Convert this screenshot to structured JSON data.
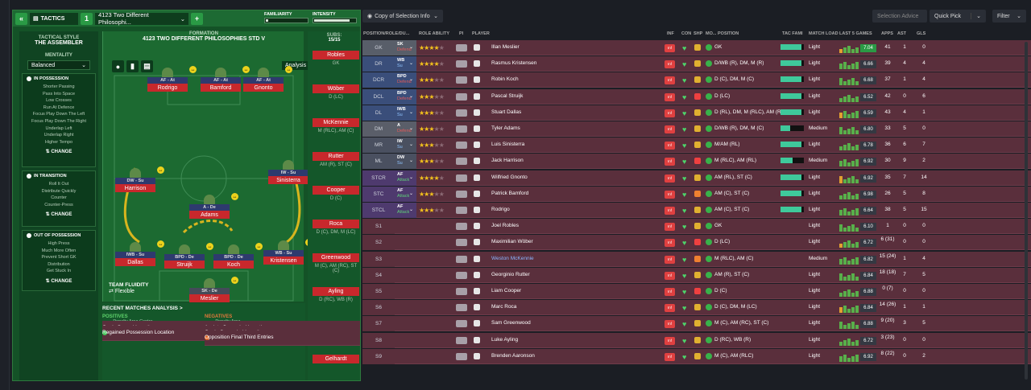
{
  "left_panel": {
    "tactics_label": "TACTICS",
    "slot": "1",
    "tactic_name": "4123 Two Different Philosophi...",
    "familiarity_label": "FAMILIARITY",
    "intensity_label": "INTENSITY",
    "familiarity_level": 0.05,
    "intensity_level": 0.85,
    "tactical_style_label": "TACTICAL STYLE",
    "tactical_style": "THE ASSEMBLER",
    "mentality_label": "MENTALITY",
    "mentality": "Balanced",
    "in_possession": {
      "title": "IN POSSESSION",
      "items": [
        "Shorter Passing",
        "Pass Into Space",
        "Low Crosses",
        "Run At Defence",
        "Focus Play Down The Left",
        "Focus Play Down The Right",
        "Underlap Left",
        "Underlap Right",
        "Higher Tempo"
      ],
      "change": "CHANGE"
    },
    "in_transition": {
      "title": "IN TRANSITION",
      "items": [
        "Roll It Out",
        "Distribute Quickly",
        "Counter",
        "Counter-Press"
      ],
      "change": "CHANGE"
    },
    "out_of_possession": {
      "title": "OUT OF POSSESSION",
      "items": [
        "High Press",
        "Much More Often",
        "Prevent Short GK",
        "Distribution",
        "Get Stuck In"
      ],
      "change": "CHANGE"
    },
    "formation_label": "FORMATION",
    "formation": "4123 TWO DIFFERENT PHILOSOPHIES STD V",
    "analysis": "Analysis",
    "subs_label": "SUBS:",
    "subs_count": "15/15",
    "pitch_players": [
      {
        "role": "AF - At",
        "name": "Rodrigo"
      },
      {
        "role": "AF - At",
        "name": "Bamford"
      },
      {
        "role": "AF - At",
        "name": "Gnonto"
      },
      {
        "role": "DW - Su",
        "name": "Harrison"
      },
      {
        "role": "IW - Su",
        "name": "Sinisterra"
      },
      {
        "role": "A - De",
        "name": "Adams"
      },
      {
        "role": "IWB - Su",
        "name": "Dallas"
      },
      {
        "role": "BPD - De",
        "name": "Struijk"
      },
      {
        "role": "BPD - De",
        "name": "Koch"
      },
      {
        "role": "WB - Su",
        "name": "Kristensen"
      },
      {
        "role": "SK - De",
        "name": "Meslier"
      }
    ],
    "team_fluidity_label": "TEAM FLUIDITY",
    "team_fluidity": "Flexible",
    "subs": [
      {
        "name": "Robles",
        "pos": "GK"
      },
      {
        "name": "Wöber",
        "pos": "D (LC)"
      },
      {
        "name": "McKennie",
        "pos": "M (RLC), AM (C)"
      },
      {
        "name": "Rutter",
        "pos": "AM (R), ST (C)"
      },
      {
        "name": "Cooper",
        "pos": "D (C)"
      },
      {
        "name": "Roca",
        "pos": "D (C), DM, M (LC)"
      },
      {
        "name": "Greenwood",
        "pos": "M (C), AM (RC), ST (C)"
      },
      {
        "name": "Ayling",
        "pos": "D (RC), WB (R)"
      },
      {
        "name": "Aaronson",
        "pos": "M (C), AM (RLC)"
      },
      {
        "name": "Gelhardt",
        "pos": ""
      }
    ],
    "recent_matches_label": "RECENT MATCHES ANALYSIS >",
    "positives_label": "POSITIVES",
    "negatives_label": "NEGATIVES",
    "positives": [
      {
        "t": "Goals Scored Location",
        "s": "- Penalty Area Centre"
      },
      {
        "t": "Opposition Long-Range Shots",
        "s": ""
      },
      {
        "t": "Regained Possession",
        "s": ""
      },
      {
        "t": "Goals from Shots in Penalty Area",
        "s": ""
      },
      {
        "t": "Regained Possession Location",
        "s": "- Defensive Third - Central"
      }
    ],
    "negatives": [
      {
        "t": "Assists Conceded Location",
        "s": "- Penalty Area"
      },
      {
        "t": "Goals Conceded Location",
        "s": "- Penalty Area Centre"
      },
      {
        "t": "Long-Range Shots",
        "s": ""
      },
      {
        "t": "Lost Possession",
        "s": ""
      },
      {
        "t": "Opposition Final Third Entries",
        "s": ""
      }
    ]
  },
  "right_panel": {
    "view_select": "Copy of Selection Info",
    "selection_advice": "Selection Advice",
    "quick_pick": "Quick Pick",
    "filter": "Filter",
    "columns": [
      "POSITION/ROLE/DU...",
      "ROLE ABILITY",
      "PI",
      "PLAYER",
      "INF",
      "CON",
      "SHP",
      "MO...",
      "POSITION",
      "TAC FAMI",
      "MATCH LOAD",
      "LAST 5 GAMES",
      "APPS",
      "AST",
      "GLS"
    ],
    "rows": [
      {
        "pos": "GK",
        "role": "SK",
        "duty": "Defend",
        "stars": 3.5,
        "player": "Illan Meslier",
        "position": "GK",
        "fam": 0.9,
        "load": "Light",
        "rating": "7.04",
        "apps": "41",
        "ast": "1",
        "gls": "0"
      },
      {
        "pos": "DR",
        "role": "WB",
        "duty": "Su",
        "stars": 3.5,
        "player": "Rasmus Kristensen",
        "position": "D/WB (R), DM, M (R)",
        "fam": 0.9,
        "load": "Light",
        "rating": "6.66",
        "apps": "39",
        "ast": "4",
        "gls": "4"
      },
      {
        "pos": "DCR",
        "role": "BPD",
        "duty": "Defend",
        "stars": 3,
        "player": "Robin Koch",
        "position": "D (C), DM, M (C)",
        "fam": 0.9,
        "load": "Light",
        "rating": "6.68",
        "apps": "37",
        "ast": "1",
        "gls": "4"
      },
      {
        "pos": "DCL",
        "role": "BPD",
        "duty": "Defend",
        "stars": 3,
        "player": "Pascal Struijk",
        "position": "D (LC)",
        "fam": 0.9,
        "load": "Light",
        "rating": "6.52",
        "apps": "42",
        "ast": "0",
        "gls": "6"
      },
      {
        "pos": "DL",
        "role": "IWB",
        "duty": "Su",
        "stars": 3,
        "player": "Stuart Dallas",
        "position": "D (RL), DM, M (RLC), AM (R...",
        "fam": 0.9,
        "load": "Light",
        "rating": "6.59",
        "apps": "43",
        "ast": "4",
        "gls": "1"
      },
      {
        "pos": "DM",
        "role": "A",
        "duty": "Defend",
        "stars": 3,
        "player": "Tyler Adams",
        "position": "D/WB (R), DM, M (C)",
        "fam": 0.4,
        "load": "Medium",
        "rating": "6.80",
        "apps": "33",
        "ast": "5",
        "gls": "0"
      },
      {
        "pos": "MR",
        "role": "IW",
        "duty": "Su",
        "stars": 3,
        "player": "Luis Sinisterra",
        "position": "M/AM (RL)",
        "fam": 0.9,
        "load": "Light",
        "rating": "6.78",
        "apps": "36",
        "ast": "6",
        "gls": "7"
      },
      {
        "pos": "ML",
        "role": "DW",
        "duty": "Su",
        "stars": 3,
        "player": "Jack Harrison",
        "position": "M (RLC), AM (RL)",
        "fam": 0.5,
        "load": "Medium",
        "rating": "6.92",
        "apps": "30",
        "ast": "9",
        "gls": "2"
      },
      {
        "pos": "STCR",
        "role": "AF",
        "duty": "Attack",
        "stars": 3.5,
        "player": "Wilfried Gnonto",
        "position": "AM (RL), ST (C)",
        "fam": 0.9,
        "load": "Light",
        "rating": "6.92",
        "apps": "35",
        "ast": "7",
        "gls": "14"
      },
      {
        "pos": "STC",
        "role": "AF",
        "duty": "Attack",
        "stars": 3,
        "player": "Patrick Bamford",
        "position": "AM (C), ST (C)",
        "fam": 0.9,
        "load": "Light",
        "rating": "6.98",
        "apps": "26",
        "ast": "5",
        "gls": "8"
      },
      {
        "pos": "STCL",
        "role": "AF",
        "duty": "Attack",
        "stars": 3,
        "player": "Rodrigo",
        "position": "AM (C), ST (C)",
        "fam": 0.9,
        "load": "Light",
        "rating": "6.64",
        "apps": "38",
        "ast": "5",
        "gls": "15"
      },
      {
        "pos": "S1",
        "role": "",
        "duty": "",
        "stars": 0,
        "player": "Joel Robles",
        "position": "GK",
        "fam": 0,
        "load": "Light",
        "rating": "6.10",
        "apps": "1",
        "ast": "0",
        "gls": "0"
      },
      {
        "pos": "S2",
        "role": "",
        "duty": "",
        "stars": 0,
        "player": "Maximilian Wöber",
        "position": "D (LC)",
        "fam": 0,
        "load": "Light",
        "rating": "6.72",
        "apps": "6 (31)",
        "ast": "0",
        "gls": "0"
      },
      {
        "pos": "S3",
        "role": "",
        "duty": "",
        "stars": 0,
        "player": "Weston McKennie",
        "position": "M (RLC), AM (C)",
        "fam": 0,
        "load": "Medium",
        "rating": "6.82",
        "apps": "15 (24)",
        "ast": "1",
        "gls": "4"
      },
      {
        "pos": "S4",
        "role": "",
        "duty": "",
        "stars": 0,
        "player": "Georginio Rutter",
        "position": "AM (R), ST (C)",
        "fam": 0,
        "load": "Light",
        "rating": "6.84",
        "apps": "18 (18)",
        "ast": "7",
        "gls": "5"
      },
      {
        "pos": "S5",
        "role": "",
        "duty": "",
        "stars": 0,
        "player": "Liam Cooper",
        "position": "D (C)",
        "fam": 0,
        "load": "Light",
        "rating": "6.88",
        "apps": "0 (7)",
        "ast": "0",
        "gls": "0"
      },
      {
        "pos": "S6",
        "role": "",
        "duty": "",
        "stars": 0,
        "player": "Marc Roca",
        "position": "D (C), DM, M (LC)",
        "fam": 0,
        "load": "Light",
        "rating": "6.84",
        "apps": "14 (26)",
        "ast": "1",
        "gls": "1"
      },
      {
        "pos": "S7",
        "role": "",
        "duty": "",
        "stars": 0,
        "player": "Sam Greenwood",
        "position": "M (C), AM (RC), ST (C)",
        "fam": 0,
        "load": "Light",
        "rating": "6.88",
        "apps": "9 (20)",
        "ast": "3",
        "gls": "5"
      },
      {
        "pos": "S8",
        "role": "",
        "duty": "",
        "stars": 0,
        "player": "Luke Ayling",
        "position": "D (RC), WB (R)",
        "fam": 0,
        "load": "Light",
        "rating": "6.72",
        "apps": "3 (23)",
        "ast": "0",
        "gls": "0"
      },
      {
        "pos": "S9",
        "role": "",
        "duty": "",
        "stars": 0,
        "player": "Brenden Aaronson",
        "position": "M (C), AM (RLC)",
        "fam": 0,
        "load": "Light",
        "rating": "6.92",
        "apps": "8 (22)",
        "ast": "0",
        "gls": "2"
      }
    ]
  },
  "colors": {
    "pitch": "#1c6a31",
    "player_name_bg": "#c8282c",
    "row_bg": "#5a2f3c",
    "accent": "#3fc99b"
  }
}
